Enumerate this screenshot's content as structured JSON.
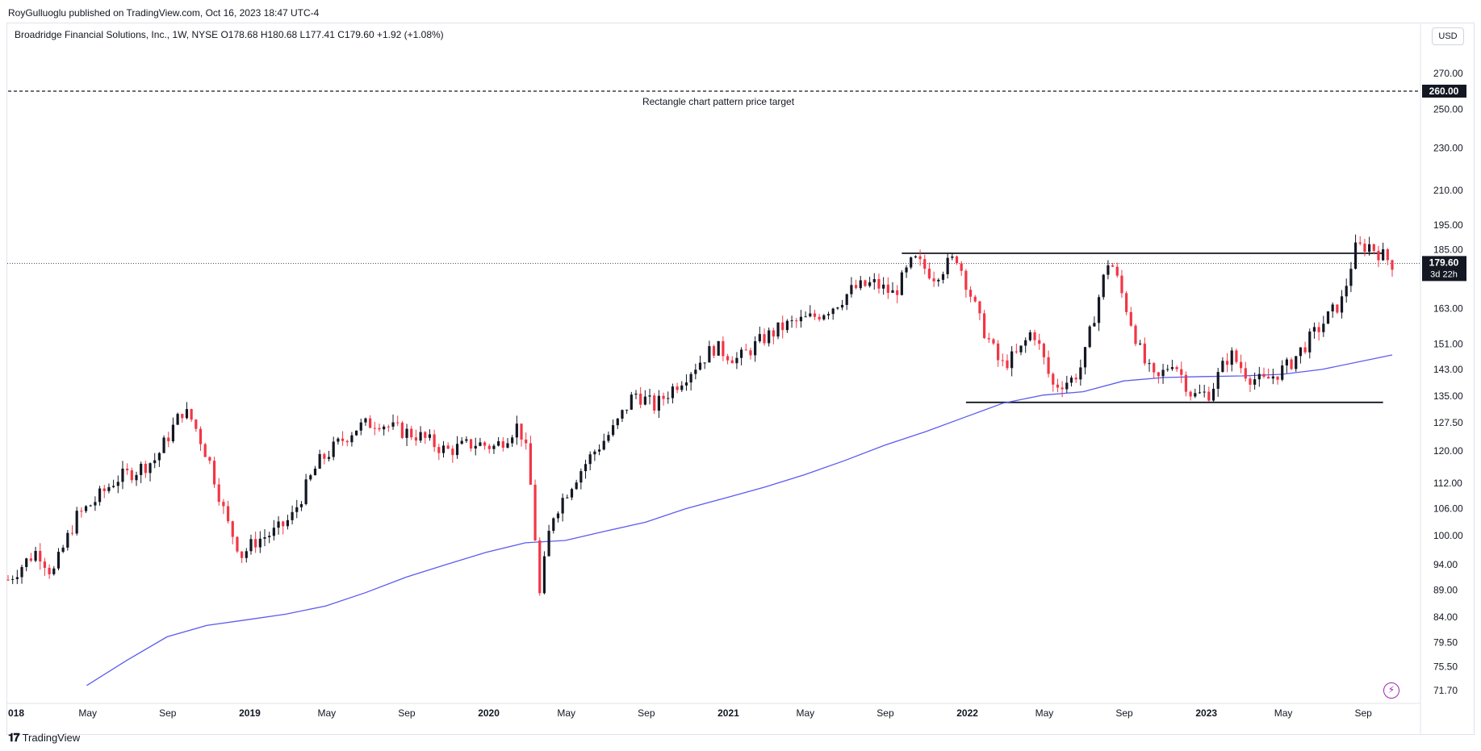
{
  "header": {
    "publisher": "RoyGulluoglu published on TradingView.com, Oct 16, 2023 18:47 UTC-4"
  },
  "legend": {
    "text": "Broadridge Financial Solutions, Inc., 1W, NYSE  O178.68  H180.68  L177.41  C179.60  +1.92 (+1.08%)"
  },
  "currency": "USD",
  "footer": {
    "logo_text": "TradingView"
  },
  "colors": {
    "up": "#131722",
    "down": "#f23645",
    "ma": "#5b5bf0",
    "grid": "#e0e3eb"
  },
  "icons": {
    "logo": "tradingview-logo-icon",
    "bolt": "lightning-bolt-icon"
  },
  "chart_data": {
    "type": "candlestick",
    "ticker": "Broadridge Financial Solutions, Inc.",
    "interval": "1W",
    "exchange": "NYSE",
    "y_ticks": [
      "270.00",
      "250.00",
      "230.00",
      "210.00",
      "195.00",
      "185.00",
      "163.00",
      "151.00",
      "143.00",
      "135.00",
      "127.50",
      "120.00",
      "112.00",
      "106.00",
      "100.00",
      "94.00",
      "89.00",
      "84.00",
      "79.50",
      "75.50",
      "71.70"
    ],
    "ylim": [
      70,
      285
    ],
    "x_ticks": [
      "018",
      "May",
      "Sep",
      "2019",
      "May",
      "Sep",
      "2020",
      "May",
      "Sep",
      "2021",
      "May",
      "Sep",
      "2022",
      "May",
      "Sep",
      "2023",
      "May",
      "Sep"
    ],
    "x_range": [
      "2018-01-01",
      "2023-10-16"
    ],
    "price_label": {
      "value": "179.60",
      "countdown": "3d 22h"
    },
    "target_label": "260.00",
    "annotation": "Rectangle chart pattern price target",
    "horizontal_lines": [
      {
        "from": "2021-09-27",
        "to": "2023-10-02",
        "value": 183.5,
        "style": "solid"
      },
      {
        "from": "2022-01-03",
        "to": "2023-10-02",
        "value": 133.2,
        "style": "solid"
      },
      {
        "from": "2018-01-01",
        "to": "2023-10-16",
        "value": 260.0,
        "style": "dashed"
      }
    ],
    "moving_average_points": [
      [
        "2018-05-01",
        72.5
      ],
      [
        "2018-07-01",
        76.5
      ],
      [
        "2018-09-01",
        80.5
      ],
      [
        "2018-11-01",
        82.5
      ],
      [
        "2019-01-01",
        83.5
      ],
      [
        "2019-03-01",
        84.5
      ],
      [
        "2019-05-01",
        86.0
      ],
      [
        "2019-07-01",
        88.5
      ],
      [
        "2019-09-01",
        91.5
      ],
      [
        "2019-11-01",
        94.0
      ],
      [
        "2020-01-01",
        96.5
      ],
      [
        "2020-03-01",
        98.5
      ],
      [
        "2020-05-01",
        99.0
      ],
      [
        "2020-07-01",
        101.0
      ],
      [
        "2020-09-01",
        103.0
      ],
      [
        "2020-11-01",
        106.0
      ],
      [
        "2021-01-01",
        108.5
      ],
      [
        "2021-03-01",
        111.0
      ],
      [
        "2021-05-01",
        114.0
      ],
      [
        "2021-07-01",
        117.5
      ],
      [
        "2021-09-01",
        121.5
      ],
      [
        "2021-11-01",
        125.0
      ],
      [
        "2022-01-01",
        129.0
      ],
      [
        "2022-03-01",
        133.0
      ],
      [
        "2022-05-01",
        135.3
      ],
      [
        "2022-07-01",
        136.3
      ],
      [
        "2022-09-01",
        139.5
      ],
      [
        "2022-11-01",
        140.5
      ],
      [
        "2023-01-01",
        140.8
      ],
      [
        "2023-03-01",
        141.0
      ],
      [
        "2023-05-01",
        141.5
      ],
      [
        "2023-07-01",
        143.0
      ],
      [
        "2023-10-16",
        147.5
      ]
    ],
    "price_path": [
      [
        "2018-01-01",
        91
      ],
      [
        "2018-02-15",
        97
      ],
      [
        "2018-03-10",
        92
      ],
      [
        "2018-04-15",
        104
      ],
      [
        "2018-05-15",
        108
      ],
      [
        "2018-06-15",
        113
      ],
      [
        "2018-07-15",
        115
      ],
      [
        "2018-08-15",
        118
      ],
      [
        "2018-09-25",
        131
      ],
      [
        "2018-10-10",
        128
      ],
      [
        "2018-11-05",
        117
      ],
      [
        "2018-12-01",
        103
      ],
      [
        "2018-12-24",
        96
      ],
      [
        "2019-01-15",
        99
      ],
      [
        "2019-02-15",
        101
      ],
      [
        "2019-03-10",
        104
      ],
      [
        "2019-04-20",
        117
      ],
      [
        "2019-06-15",
        126
      ],
      [
        "2019-07-20",
        128
      ],
      [
        "2019-08-10",
        126
      ],
      [
        "2019-09-20",
        124
      ],
      [
        "2019-11-01",
        120
      ],
      [
        "2019-12-15",
        122
      ],
      [
        "2020-01-15",
        121
      ],
      [
        "2020-02-20",
        127
      ],
      [
        "2020-03-05",
        118
      ],
      [
        "2020-03-23",
        88
      ],
      [
        "2020-04-10",
        104
      ],
      [
        "2020-05-15",
        113
      ],
      [
        "2020-06-15",
        120
      ],
      [
        "2020-07-15",
        126
      ],
      [
        "2020-08-15",
        136
      ],
      [
        "2020-09-15",
        132
      ],
      [
        "2020-10-15",
        138
      ],
      [
        "2020-11-15",
        144
      ],
      [
        "2020-12-15",
        150
      ],
      [
        "2021-01-20",
        146
      ],
      [
        "2021-03-01",
        153
      ],
      [
        "2021-04-01",
        157
      ],
      [
        "2021-05-15",
        160
      ],
      [
        "2021-06-15",
        164
      ],
      [
        "2021-07-15",
        170
      ],
      [
        "2021-08-15",
        172
      ],
      [
        "2021-09-15",
        168
      ],
      [
        "2021-10-15",
        181
      ],
      [
        "2021-11-15",
        175
      ],
      [
        "2021-12-20",
        182
      ],
      [
        "2022-01-25",
        158
      ],
      [
        "2022-02-25",
        144
      ],
      [
        "2022-03-25",
        148
      ],
      [
        "2022-04-15",
        156
      ],
      [
        "2022-05-15",
        138
      ],
      [
        "2022-06-15",
        140
      ],
      [
        "2022-07-01",
        145
      ],
      [
        "2022-08-10",
        182
      ],
      [
        "2022-09-01",
        166
      ],
      [
        "2022-09-30",
        146
      ],
      [
        "2022-10-20",
        139
      ],
      [
        "2022-11-15",
        146
      ],
      [
        "2022-12-15",
        135
      ],
      [
        "2023-01-10",
        136
      ],
      [
        "2023-02-10",
        148
      ],
      [
        "2023-03-10",
        141
      ],
      [
        "2023-04-01",
        139
      ],
      [
        "2023-05-10",
        144
      ],
      [
        "2023-06-10",
        152
      ],
      [
        "2023-07-10",
        160
      ],
      [
        "2023-08-01",
        166
      ],
      [
        "2023-08-20",
        185
      ],
      [
        "2023-09-10",
        187
      ],
      [
        "2023-10-16",
        179.6
      ]
    ]
  }
}
